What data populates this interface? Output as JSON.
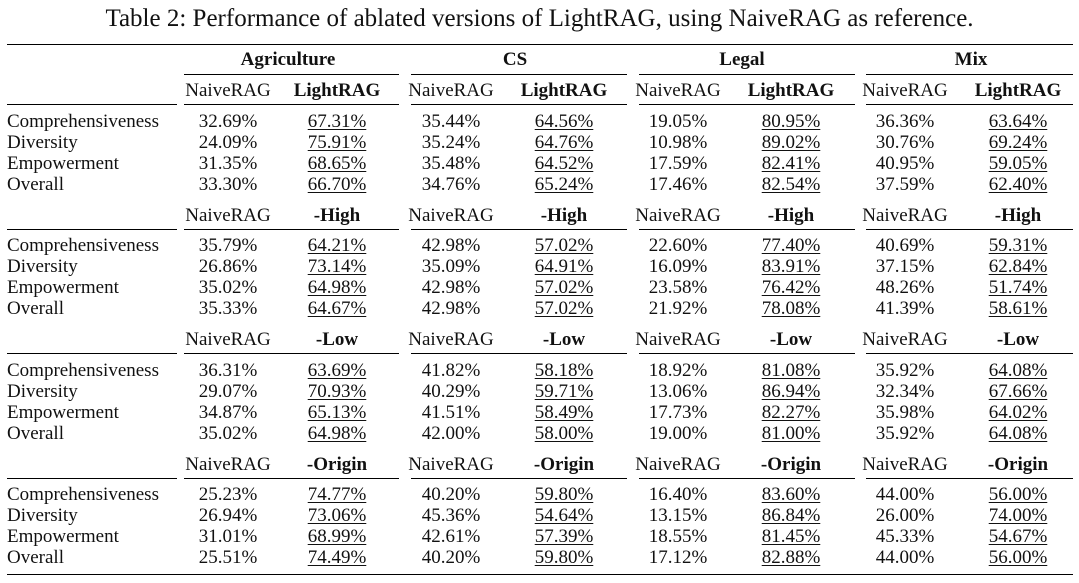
{
  "caption": "Table 2: Performance of ablated versions of LightRAG, using NaiveRAG as reference.",
  "domains": [
    "Agriculture",
    "CS",
    "Legal",
    "Mix"
  ],
  "blocks": [
    {
      "baseline_label": "NaiveRAG",
      "variant_label": "LightRAG",
      "rows": [
        {
          "metric": "Comprehensiveness",
          "values": [
            "32.69%",
            "67.31%",
            "35.44%",
            "64.56%",
            "19.05%",
            "80.95%",
            "36.36%",
            "63.64%"
          ]
        },
        {
          "metric": "Diversity",
          "values": [
            "24.09%",
            "75.91%",
            "35.24%",
            "64.76%",
            "10.98%",
            "89.02%",
            "30.76%",
            "69.24%"
          ]
        },
        {
          "metric": "Empowerment",
          "values": [
            "31.35%",
            "68.65%",
            "35.48%",
            "64.52%",
            "17.59%",
            "82.41%",
            "40.95%",
            "59.05%"
          ]
        },
        {
          "metric": "Overall",
          "values": [
            "33.30%",
            "66.70%",
            "34.76%",
            "65.24%",
            "17.46%",
            "82.54%",
            "37.59%",
            "62.40%"
          ]
        }
      ]
    },
    {
      "baseline_label": "NaiveRAG",
      "variant_label": "-High",
      "rows": [
        {
          "metric": "Comprehensiveness",
          "values": [
            "35.79%",
            "64.21%",
            "42.98%",
            "57.02%",
            "22.60%",
            "77.40%",
            "40.69%",
            "59.31%"
          ]
        },
        {
          "metric": "Diversity",
          "values": [
            "26.86%",
            "73.14%",
            "35.09%",
            "64.91%",
            "16.09%",
            "83.91%",
            "37.15%",
            "62.84%"
          ]
        },
        {
          "metric": "Empowerment",
          "values": [
            "35.02%",
            "64.98%",
            "42.98%",
            "57.02%",
            "23.58%",
            "76.42%",
            "48.26%",
            "51.74%"
          ]
        },
        {
          "metric": "Overall",
          "values": [
            "35.33%",
            "64.67%",
            "42.98%",
            "57.02%",
            "21.92%",
            "78.08%",
            "41.39%",
            "58.61%"
          ]
        }
      ]
    },
    {
      "baseline_label": "NaiveRAG",
      "variant_label": "-Low",
      "rows": [
        {
          "metric": "Comprehensiveness",
          "values": [
            "36.31%",
            "63.69%",
            "41.82%",
            "58.18%",
            "18.92%",
            "81.08%",
            "35.92%",
            "64.08%"
          ]
        },
        {
          "metric": "Diversity",
          "values": [
            "29.07%",
            "70.93%",
            "40.29%",
            "59.71%",
            "13.06%",
            "86.94%",
            "32.34%",
            "67.66%"
          ]
        },
        {
          "metric": "Empowerment",
          "values": [
            "34.87%",
            "65.13%",
            "41.51%",
            "58.49%",
            "17.73%",
            "82.27%",
            "35.98%",
            "64.02%"
          ]
        },
        {
          "metric": "Overall",
          "values": [
            "35.02%",
            "64.98%",
            "42.00%",
            "58.00%",
            "19.00%",
            "81.00%",
            "35.92%",
            "64.08%"
          ]
        }
      ]
    },
    {
      "baseline_label": "NaiveRAG",
      "variant_label": "-Origin",
      "rows": [
        {
          "metric": "Comprehensiveness",
          "values": [
            "25.23%",
            "74.77%",
            "40.20%",
            "59.80%",
            "16.40%",
            "83.60%",
            "44.00%",
            "56.00%"
          ]
        },
        {
          "metric": "Diversity",
          "values": [
            "26.94%",
            "73.06%",
            "45.36%",
            "54.64%",
            "13.15%",
            "86.84%",
            "26.00%",
            "74.00%"
          ]
        },
        {
          "metric": "Empowerment",
          "values": [
            "31.01%",
            "68.99%",
            "42.61%",
            "57.39%",
            "18.55%",
            "81.45%",
            "45.33%",
            "54.67%"
          ]
        },
        {
          "metric": "Overall",
          "values": [
            "25.51%",
            "74.49%",
            "40.20%",
            "59.80%",
            "17.12%",
            "82.88%",
            "44.00%",
            "56.00%"
          ]
        }
      ]
    }
  ]
}
